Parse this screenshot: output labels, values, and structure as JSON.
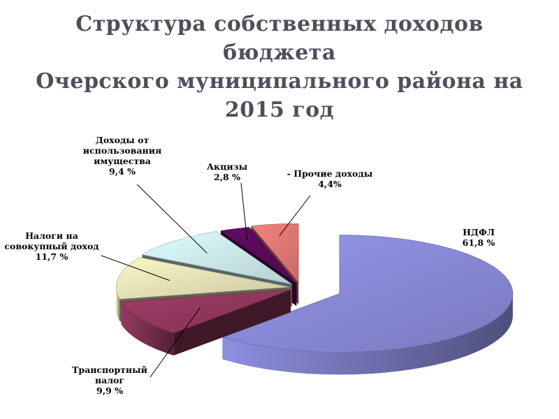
{
  "title": {
    "line1": "Структура собственных доходов",
    "line2": "бюджета",
    "line3": "Очерского муниципального района на",
    "line4": "2015 год"
  },
  "chart_data": {
    "type": "pie",
    "title": "Структура собственных доходов бюджета Очерского муниципального района на 2015 год",
    "slices": [
      {
        "name": "НДФЛ",
        "value": 61.8,
        "value_label": "61,8 %",
        "label_lines": [
          "НДФЛ",
          "61,8 %"
        ],
        "color": "#8e8fe0"
      },
      {
        "name": "Транспортный налог",
        "value": 9.9,
        "value_label": "9,9 %",
        "label_lines": [
          "Транспортный",
          "налог",
          "9,9 %"
        ],
        "color": "#963a60"
      },
      {
        "name": "Налоги на совокупный доход",
        "value": 11.7,
        "value_label": "11,7 %",
        "label_lines": [
          "Налоги на",
          "совокупный доход",
          "11,7 %"
        ],
        "color": "#eeebbe"
      },
      {
        "name": "Доходы от использования имущества",
        "value": 9.4,
        "value_label": "9,4 %",
        "label_lines": [
          "Доходы от",
          "использования",
          "имущества",
          "9,4 %"
        ],
        "color": "#d4f3f7"
      },
      {
        "name": "Акцизы",
        "value": 2.8,
        "value_label": "2,8 %",
        "label_lines": [
          "Акцизы",
          "2,8 %"
        ],
        "color": "#5c0a5e"
      },
      {
        "name": "- Прочие доходы",
        "value": 4.4,
        "value_label": "4,4%",
        "label_lines": [
          "- Прочие доходы",
          "4,4%"
        ],
        "color": "#ea7d79"
      }
    ],
    "legend": "none"
  }
}
